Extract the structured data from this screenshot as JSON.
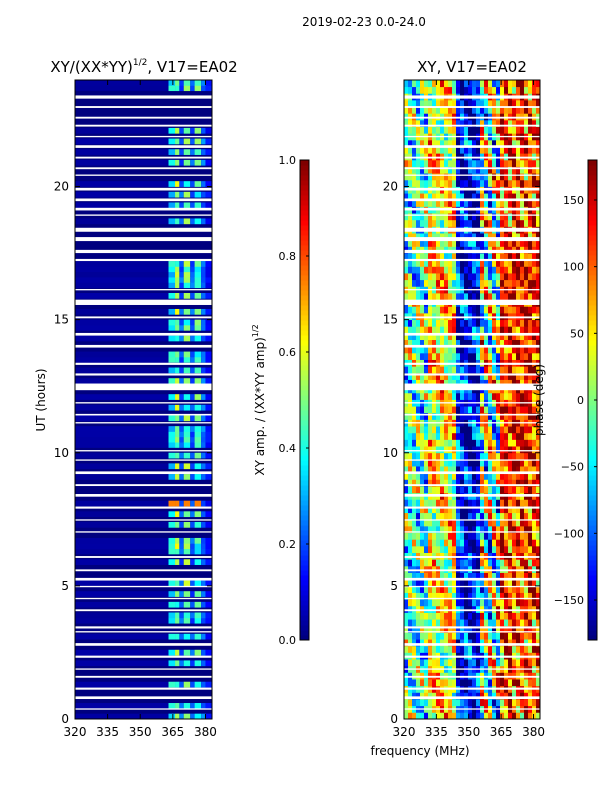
{
  "suptitle": "2019-02-23 0.0-24.0",
  "shared_xlabel": "frequency (MHz)",
  "colors": {
    "jet": [
      "#00007f",
      "#0000ff",
      "#007fff",
      "#00ffff",
      "#7fff7f",
      "#ffff00",
      "#ff7f00",
      "#ff0000",
      "#7f0000"
    ],
    "gap": "#ffffff",
    "frame": "#000000"
  },
  "flag_gaps_ut_hours": [
    [
      23.3,
      23.42
    ],
    [
      22.95,
      23.02
    ],
    [
      22.55,
      22.62
    ],
    [
      22.25,
      22.32
    ],
    [
      21.85,
      21.9
    ],
    [
      21.45,
      21.55
    ],
    [
      21.05,
      21.12
    ],
    [
      20.65,
      20.72
    ],
    [
      20.4,
      20.45
    ],
    [
      19.85,
      19.95
    ],
    [
      19.45,
      19.55
    ],
    [
      19.1,
      19.2
    ],
    [
      18.9,
      18.95
    ],
    [
      18.3,
      18.45
    ],
    [
      17.95,
      18.1
    ],
    [
      17.5,
      17.62
    ],
    [
      17.2,
      17.28
    ],
    [
      16.1,
      16.15
    ],
    [
      15.55,
      15.75
    ],
    [
      15.05,
      15.12
    ],
    [
      14.4,
      14.5
    ],
    [
      13.95,
      14.05
    ],
    [
      13.3,
      13.38
    ],
    [
      12.9,
      12.98
    ],
    [
      12.35,
      12.6
    ],
    [
      11.85,
      11.9
    ],
    [
      11.4,
      11.46
    ],
    [
      11.1,
      11.15
    ],
    [
      10.05,
      10.1
    ],
    [
      9.7,
      9.75
    ],
    [
      9.2,
      9.3
    ],
    [
      8.75,
      8.82
    ],
    [
      8.35,
      8.45
    ],
    [
      7.9,
      7.98
    ],
    [
      7.45,
      7.5
    ],
    [
      7.0,
      7.05
    ],
    [
      6.05,
      6.12
    ],
    [
      5.55,
      5.62
    ],
    [
      5.2,
      5.3
    ],
    [
      4.95,
      5.0
    ],
    [
      4.5,
      4.55
    ],
    [
      4.05,
      4.12
    ],
    [
      3.4,
      3.48
    ],
    [
      3.25,
      3.3
    ],
    [
      2.75,
      2.85
    ],
    [
      2.3,
      2.38
    ],
    [
      1.85,
      1.9
    ],
    [
      1.55,
      1.62
    ],
    [
      1.1,
      1.18
    ],
    [
      0.75,
      0.85
    ],
    [
      0.35,
      0.4
    ]
  ],
  "chart_data": [
    {
      "type": "heatmap",
      "name": "normalized-xy-amplitude",
      "title_main": "XY/(XX*YY)",
      "title_sup": "1/2",
      "title_tail": ", V17=EA02",
      "xlabel": "",
      "ylabel": "UT (hours)",
      "xlim": [
        320,
        383
      ],
      "ylim": [
        0,
        24
      ],
      "xticks": [
        320,
        335,
        350,
        365,
        380
      ],
      "yticks": [
        0,
        5,
        10,
        15,
        20
      ],
      "colorbar": {
        "label_main": "XY amp. / (XX*YY amp)",
        "label_sup": "1/2",
        "range": [
          0.0,
          1.0
        ],
        "ticks": [
          "0.0",
          "0.2",
          "0.4",
          "0.6",
          "0.8",
          "1.0"
        ],
        "tick_values": [
          0.0,
          0.2,
          0.4,
          0.6,
          0.8,
          1.0
        ]
      },
      "frequency_profile_mhz": [
        {
          "from": 320,
          "to": 363,
          "level": 0.03
        },
        {
          "from": 363,
          "to": 366,
          "level": 0.35
        },
        {
          "from": 366,
          "to": 368,
          "level": 0.48
        },
        {
          "from": 368,
          "to": 370,
          "level": 0.2
        },
        {
          "from": 370,
          "to": 373,
          "level": 0.45
        },
        {
          "from": 373,
          "to": 375,
          "level": 0.2
        },
        {
          "from": 375,
          "to": 378,
          "level": 0.42
        },
        {
          "from": 378,
          "to": 380,
          "level": 0.22
        },
        {
          "from": 380,
          "to": 383,
          "level": 0.12
        }
      ],
      "flare_ut_hours": [
        8.0,
        8.3
      ],
      "flare_level": 0.75
    },
    {
      "type": "heatmap",
      "name": "xy-phase",
      "title_main": "XY, V17=EA02",
      "title_sup": "",
      "title_tail": "",
      "xlabel": "",
      "ylabel": "",
      "xlim": [
        320,
        383
      ],
      "ylim": [
        0,
        24
      ],
      "xticks": [
        320,
        335,
        350,
        365,
        380
      ],
      "yticks": [
        0,
        5,
        10,
        15,
        20
      ],
      "colorbar": {
        "label_main": "phase (deg)",
        "label_sup": "",
        "range": [
          -180,
          180
        ],
        "ticks": [
          "−150",
          "−100",
          "−50",
          "0",
          "50",
          "100",
          "150"
        ],
        "tick_values": [
          -150,
          -100,
          -50,
          0,
          50,
          100,
          150
        ]
      }
    }
  ]
}
